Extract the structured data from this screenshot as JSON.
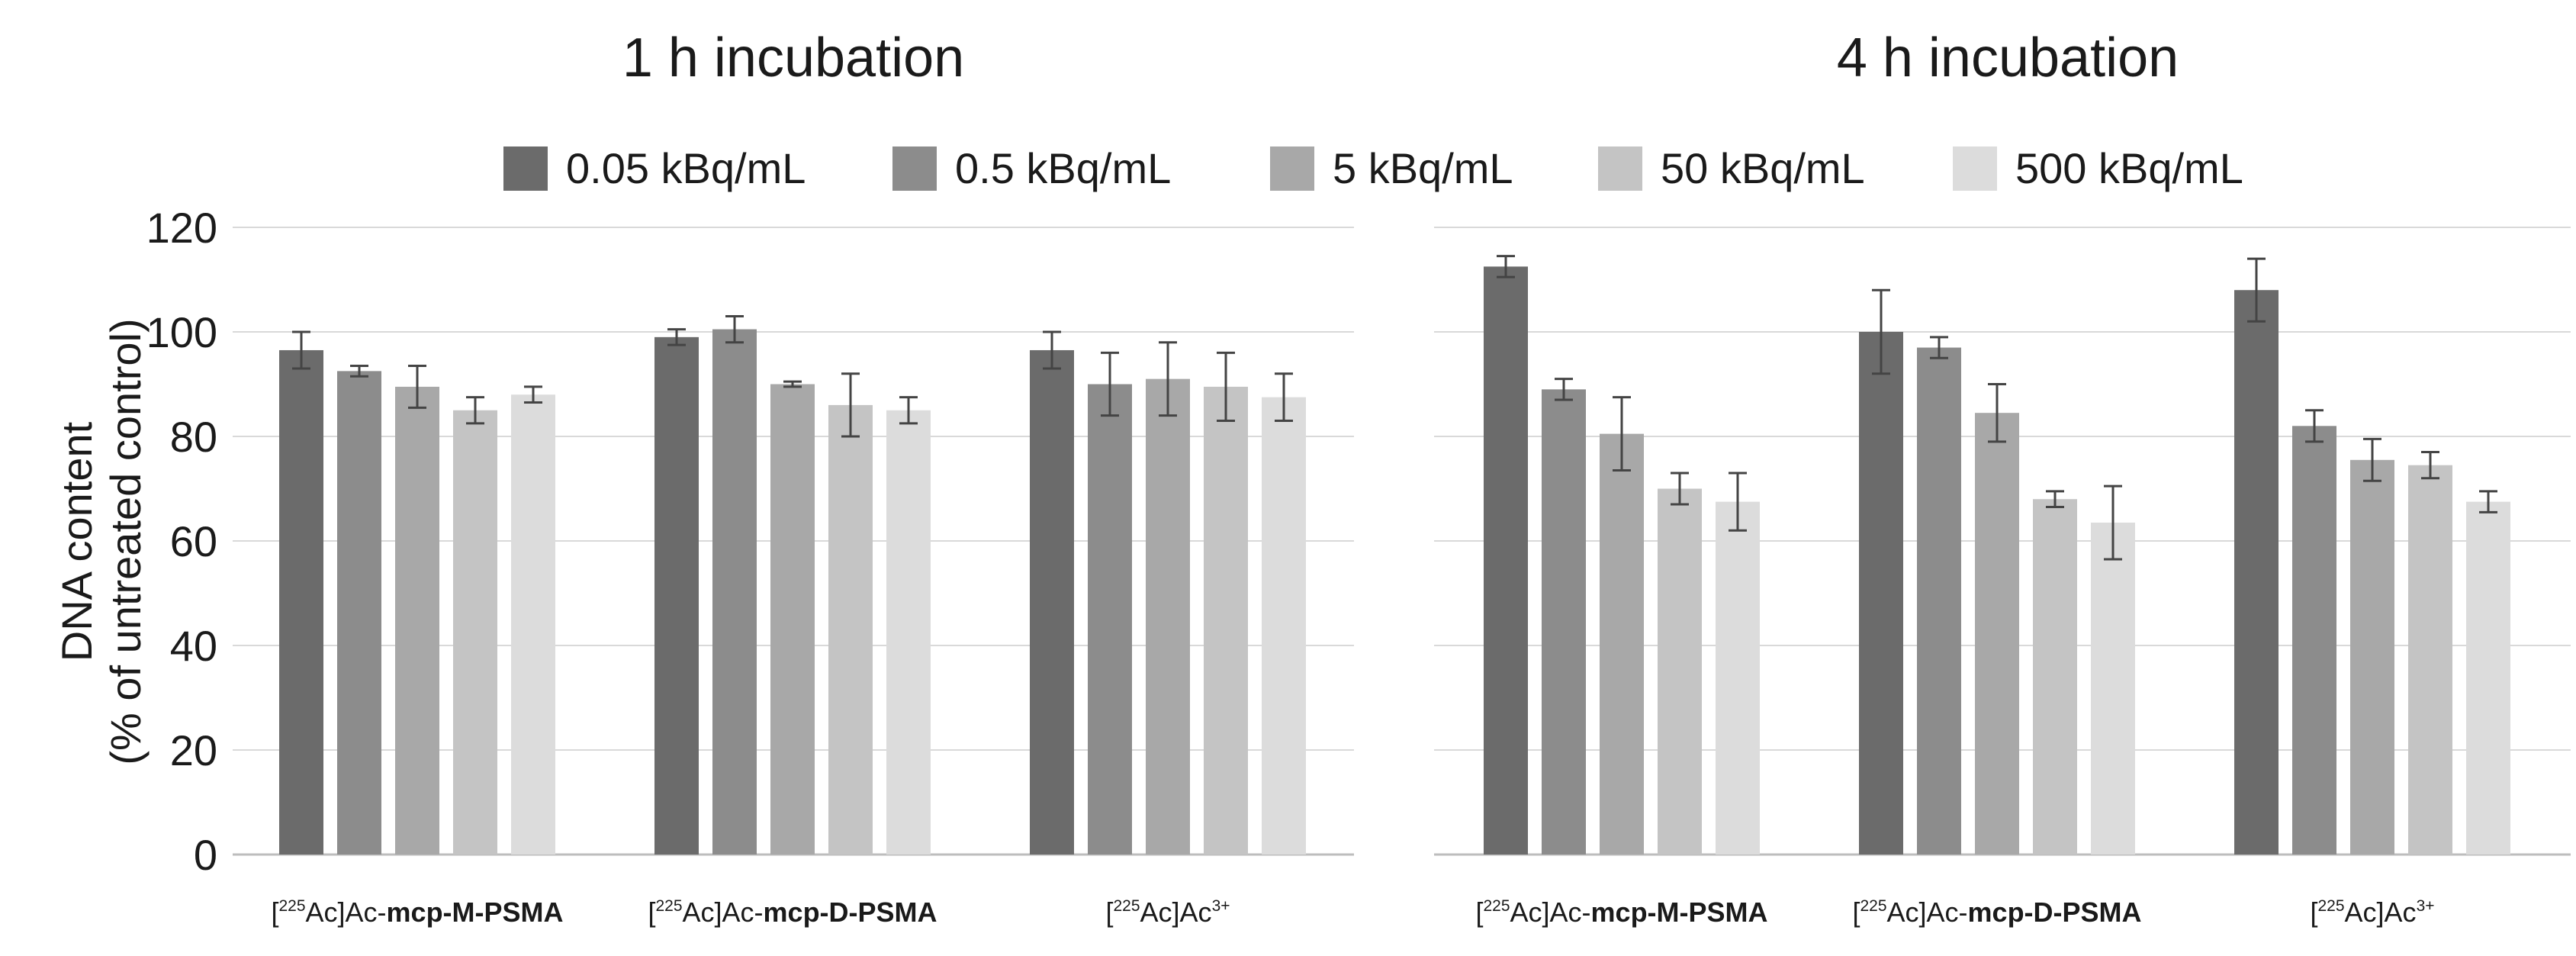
{
  "chart_data": {
    "type": "bar",
    "ylabel_line1": "DNA content",
    "ylabel_line2": "(% of untreated control)",
    "ylim": [
      0,
      120
    ],
    "yticks": [
      "0",
      "20",
      "40",
      "60",
      "80",
      "100",
      "120"
    ],
    "grid": true,
    "legend_position": "top-center",
    "series": [
      {
        "name": "0.05 kBq/mL",
        "color": "#6b6b6b"
      },
      {
        "name": "0.5 kBq/mL",
        "color": "#8c8c8c"
      },
      {
        "name": "5 kBq/mL",
        "color": "#a8a8a8"
      },
      {
        "name": "50 kBq/mL",
        "color": "#c4c4c4"
      },
      {
        "name": "500 kBq/mL",
        "color": "#dcdcdc"
      }
    ],
    "categories": [
      {
        "pre": "[",
        "sup": "225",
        "mid": "Ac]Ac-",
        "bold": "mcp-M-PSMA"
      },
      {
        "pre": "[",
        "sup": "225",
        "mid": "Ac]Ac-",
        "bold": "mcp-D-PSMA"
      },
      {
        "pre": "[",
        "sup": "225",
        "mid": "Ac]Ac",
        "sup2": "3+"
      }
    ],
    "panels": [
      {
        "title": "1 h incubation",
        "values": [
          [
            96.5,
            92.5,
            89.5,
            85,
            88
          ],
          [
            99,
            100.5,
            90,
            86,
            85
          ],
          [
            96.5,
            90,
            91,
            89.5,
            87.5
          ]
        ],
        "errors": [
          [
            3.5,
            1,
            4,
            2.5,
            1.5
          ],
          [
            1.5,
            2.5,
            0.5,
            6,
            2.5
          ],
          [
            3.5,
            6,
            7,
            6.5,
            4.5
          ]
        ]
      },
      {
        "title": "4 h incubation",
        "values": [
          [
            112.5,
            89,
            80.5,
            70,
            67.5
          ],
          [
            100,
            97,
            84.5,
            68,
            63.5
          ],
          [
            108,
            82,
            75.5,
            74.5,
            67.5
          ]
        ],
        "errors": [
          [
            2,
            2,
            7,
            3,
            5.5
          ],
          [
            8,
            2,
            5.5,
            1.5,
            7
          ],
          [
            6,
            3,
            4,
            2.5,
            2
          ]
        ]
      }
    ]
  }
}
